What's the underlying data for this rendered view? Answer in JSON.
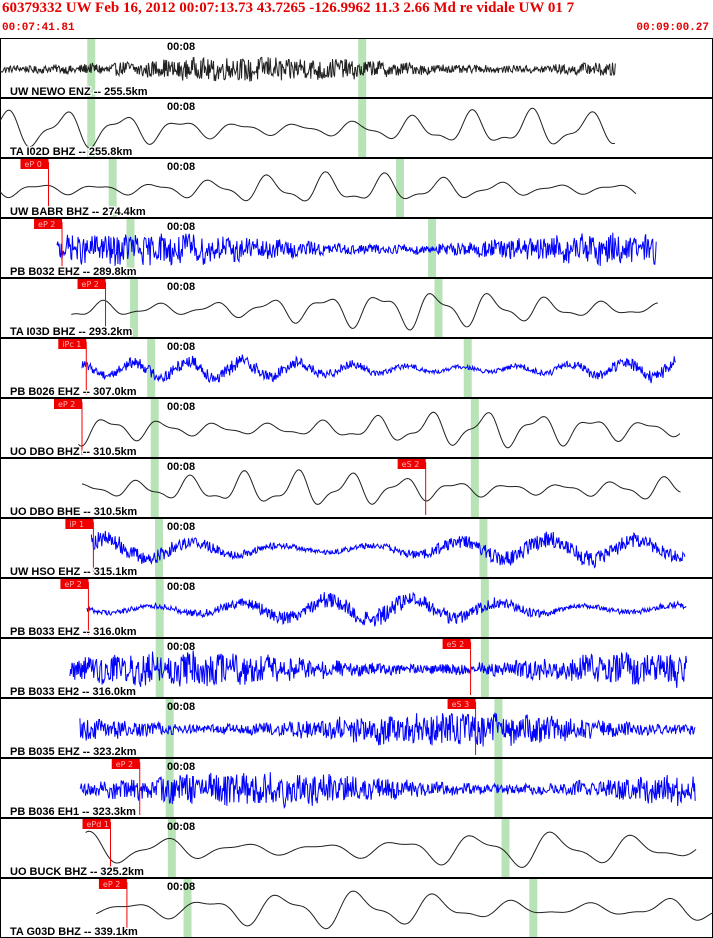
{
  "header": {
    "title": "60379332 UW Feb 16, 2012 00:07:13.73   43.7265 -126.9962 11.3 2.66 Md re vidale UW 01    7",
    "start_time": "00:07:41.81",
    "end_time": "00:09:00.27"
  },
  "colors": {
    "header_text": "#e60000",
    "trace_black": "#202020",
    "trace_blue": "#0000ff",
    "pick": "#ee0000",
    "window_band": "#b7e3b7",
    "panel_border": "#000000"
  },
  "chart_data": {
    "type": "line",
    "title": "60379332 UW Feb 16, 2012 00:07:13.73   43.7265 -126.9962 11.3 2.66 Md re vidale UW 01    7",
    "x_unit": "time",
    "x_range": [
      "00:07:41.81",
      "00:09:00.27"
    ],
    "tick_label": "00:08",
    "traces": [
      {
        "label": "UW NEWO ENZ -- 255.5km",
        "color": "black",
        "style": "noise",
        "start": 0.0,
        "end": 0.863,
        "amp": 0.55,
        "pick": null,
        "pick2": null,
        "bands": [
          0.128,
          0.508
        ]
      },
      {
        "label": "TA I02D BHZ -- 255.8km",
        "color": "black",
        "style": "smooth",
        "start": 0.0,
        "end": 0.863,
        "amp": 0.85,
        "pick": null,
        "pick2": null,
        "bands": [
          0.128,
          0.508
        ]
      },
      {
        "label": "UW BABR BHZ -- 274.4km",
        "color": "black",
        "style": "smooth",
        "start": 0.0,
        "end": 0.893,
        "amp": 0.7,
        "pick": {
          "text": "eP 0",
          "pos": 0.068
        },
        "pick2": null,
        "bands": [
          0.158,
          0.561
        ]
      },
      {
        "label": "PB B032 EHZ -- 289.8km",
        "color": "blue",
        "style": "noise",
        "start": 0.08,
        "end": 0.921,
        "amp": 0.7,
        "pick": {
          "text": "eP 2",
          "pos": 0.087
        },
        "pick2": null,
        "bands": [
          0.183,
          0.606
        ]
      },
      {
        "label": "TA I03D BHZ -- 293.2km",
        "color": "black",
        "style": "smooth",
        "start": 0.1,
        "end": 0.924,
        "amp": 0.85,
        "pick": {
          "text": "eP 2",
          "pos": 0.148
        },
        "pick2": null,
        "bands": [
          0.188,
          0.615
        ]
      },
      {
        "label": "PB B026 EHZ -- 307.0km",
        "color": "blue",
        "style": "mixed",
        "start": 0.115,
        "end": 0.948,
        "amp": 0.6,
        "pick": {
          "text": "iPc 1",
          "pos": 0.121
        },
        "pick2": null,
        "bands": [
          0.212,
          0.656
        ]
      },
      {
        "label": "UO DBO BHZ -- 310.5km",
        "color": "black",
        "style": "smooth",
        "start": 0.11,
        "end": 0.955,
        "amp": 0.8,
        "pick": {
          "text": "eP 2",
          "pos": 0.115
        },
        "pick2": null,
        "bands": [
          0.217,
          0.666
        ]
      },
      {
        "label": "UO DBO BHE -- 310.5km",
        "color": "black",
        "style": "smooth",
        "start": 0.115,
        "end": 0.955,
        "amp": 0.8,
        "pick": null,
        "pick2": {
          "text": "eS 2",
          "pos": 0.597
        },
        "bands": [
          0.217,
          0.666
        ]
      },
      {
        "label": "UW HSO EHZ -- 315.1km",
        "color": "blue",
        "style": "mixed",
        "start": 0.128,
        "end": 0.961,
        "amp": 0.75,
        "pick": {
          "text": "iP 1",
          "pos": 0.131
        },
        "pick2": null,
        "bands": [
          0.223,
          0.678
        ]
      },
      {
        "label": "PB B033 EHZ -- 316.0km",
        "color": "blue",
        "style": "mixed",
        "start": 0.122,
        "end": 0.963,
        "amp": 0.75,
        "pick": {
          "text": "eP 2",
          "pos": 0.124
        },
        "pick2": null,
        "bands": [
          0.224,
          0.68
        ]
      },
      {
        "label": "PB B033 EH2 -- 316.0km",
        "color": "blue",
        "style": "noise",
        "start": 0.098,
        "end": 0.963,
        "amp": 0.75,
        "pick": null,
        "pick2": {
          "text": "eS 2",
          "pos": 0.66
        },
        "bands": [
          0.224,
          0.68
        ]
      },
      {
        "label": "PB B035 EHZ -- 323.2km",
        "color": "blue",
        "style": "noise",
        "start": 0.112,
        "end": 0.975,
        "amp": 0.75,
        "pick": null,
        "pick2": {
          "text": "eS 3",
          "pos": 0.667
        },
        "bands": [
          0.238,
          0.699
        ]
      },
      {
        "label": "PB B036 EH1 -- 323.3km",
        "color": "blue",
        "style": "noise",
        "start": 0.112,
        "end": 0.975,
        "amp": 0.75,
        "pick": {
          "text": "eP 2",
          "pos": 0.196
        },
        "pick2": null,
        "bands": [
          0.238,
          0.699
        ]
      },
      {
        "label": "UO BUCK BHZ -- 325.2km",
        "color": "black",
        "style": "smooth",
        "start": 0.12,
        "end": 0.978,
        "amp": 0.8,
        "pick": {
          "text": "ePd 1",
          "pos": 0.155
        },
        "pick2": null,
        "bands": [
          0.241,
          0.709
        ]
      },
      {
        "label": "TA G03D BHZ -- 339.1km",
        "color": "black",
        "style": "smooth",
        "start": 0.135,
        "end": 1.0,
        "amp": 0.85,
        "pick": {
          "text": "eP 2",
          "pos": 0.178
        },
        "pick2": null,
        "bands": [
          0.263,
          0.748
        ]
      }
    ]
  }
}
